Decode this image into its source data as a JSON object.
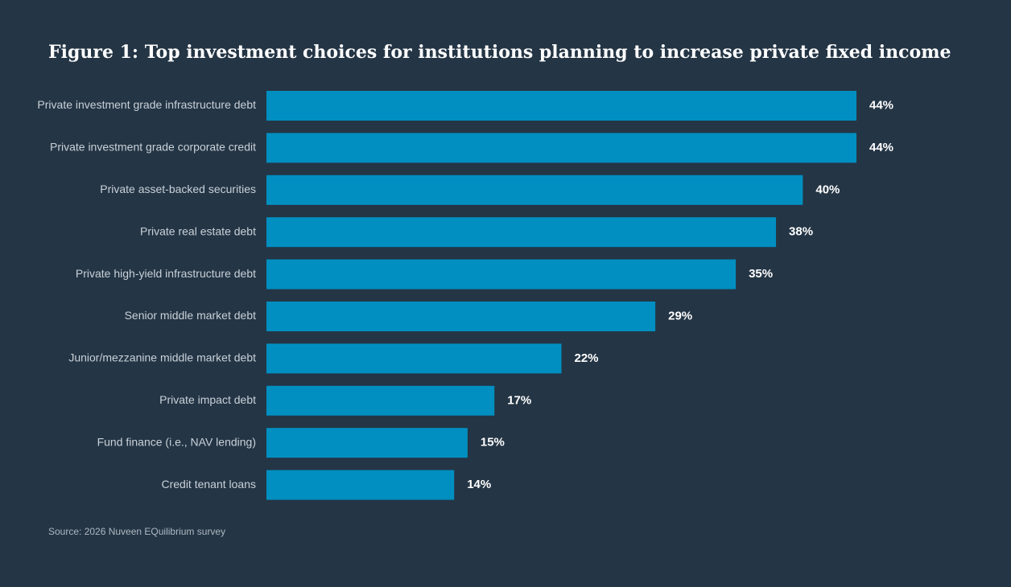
{
  "chart_data": {
    "type": "bar",
    "orientation": "horizontal",
    "title": "Figure 1: Top investment choices for institutions planning to increase private fixed income",
    "source": "Source: 2026 Nuveen EQuilibrium survey",
    "categories": [
      "Private investment grade infrastructure debt",
      "Private investment grade corporate credit",
      "Private asset-backed securities",
      "Private real estate debt",
      "Private high-yield infrastructure debt",
      "Senior middle market debt",
      "Junior/mezzanine middle market debt",
      "Private impact debt",
      "Fund finance (i.e., NAV lending)",
      "Credit tenant loans"
    ],
    "values": [
      44,
      44,
      40,
      38,
      35,
      29,
      22,
      17,
      15,
      14
    ],
    "value_labels": [
      "44%",
      "44%",
      "40%",
      "38%",
      "35%",
      "29%",
      "22%",
      "17%",
      "15%",
      "14%"
    ],
    "xlim": [
      0,
      44
    ],
    "grid": false,
    "legend": "none",
    "colors": {
      "background": "#243545",
      "bar": "#008fc0",
      "title": "#ffffff",
      "category_text": "#c9d1d8",
      "value_text": "#ffffff"
    }
  }
}
